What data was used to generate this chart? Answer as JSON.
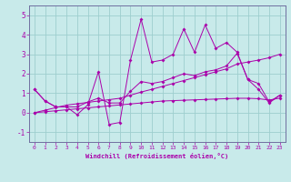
{
  "xlabel": "Windchill (Refroidissement éolien,°C)",
  "background_color": "#c8eaea",
  "grid_color": "#9ecece",
  "line_color": "#aa00aa",
  "spine_color": "#7070a0",
  "xlim": [
    -0.5,
    23.5
  ],
  "ylim": [
    -1.5,
    5.5
  ],
  "yticks": [
    -1,
    0,
    1,
    2,
    3,
    4,
    5
  ],
  "xticks": [
    0,
    1,
    2,
    3,
    4,
    5,
    6,
    7,
    8,
    9,
    10,
    11,
    12,
    13,
    14,
    15,
    16,
    17,
    18,
    19,
    20,
    21,
    22,
    23
  ],
  "series": {
    "volatile": [
      1.2,
      0.6,
      0.3,
      0.3,
      -0.1,
      0.4,
      2.1,
      -0.6,
      -0.5,
      2.7,
      4.8,
      2.6,
      2.7,
      3.0,
      4.3,
      3.1,
      4.5,
      3.3,
      3.6,
      3.1,
      1.7,
      1.2,
      0.5,
      0.9
    ],
    "upper_smooth": [
      1.2,
      0.6,
      0.3,
      0.3,
      0.3,
      0.55,
      0.75,
      0.5,
      0.5,
      1.1,
      1.6,
      1.5,
      1.6,
      1.8,
      2.0,
      1.9,
      2.1,
      2.2,
      2.4,
      3.05,
      1.7,
      1.5,
      0.55,
      0.9
    ],
    "lower_flat": [
      0.0,
      0.05,
      0.1,
      0.15,
      0.2,
      0.25,
      0.3,
      0.35,
      0.4,
      0.45,
      0.5,
      0.55,
      0.6,
      0.62,
      0.64,
      0.66,
      0.68,
      0.7,
      0.72,
      0.74,
      0.74,
      0.72,
      0.65,
      0.75
    ],
    "trend_line": [
      0.0,
      0.13,
      0.26,
      0.39,
      0.46,
      0.53,
      0.6,
      0.67,
      0.74,
      0.9,
      1.06,
      1.2,
      1.35,
      1.5,
      1.65,
      1.8,
      1.95,
      2.1,
      2.25,
      2.5,
      2.6,
      2.7,
      2.82,
      3.0
    ]
  }
}
